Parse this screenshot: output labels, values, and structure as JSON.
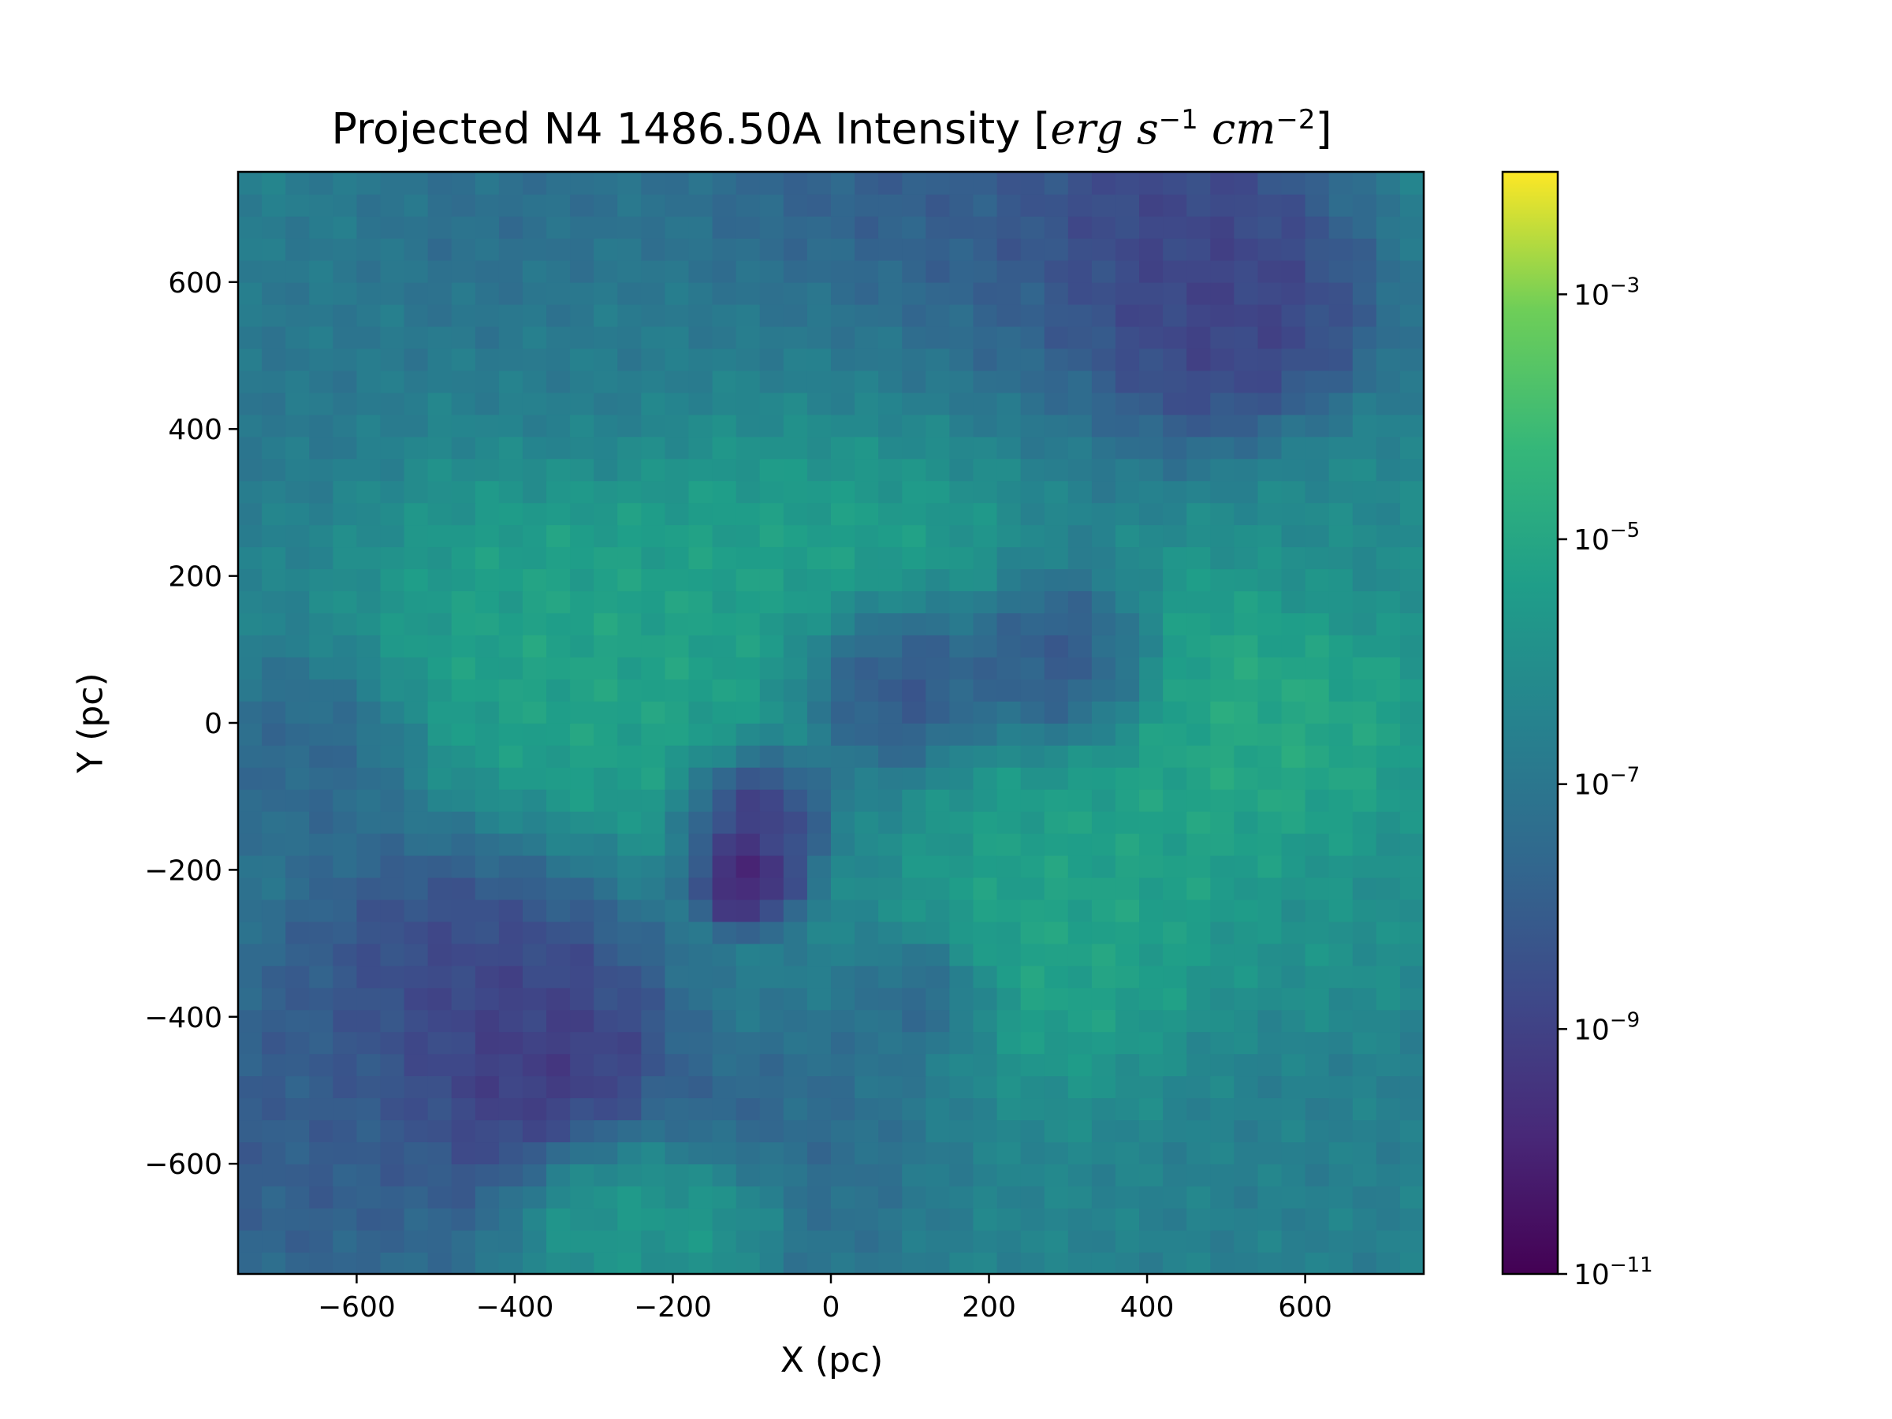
{
  "chart_data": {
    "type": "heatmap",
    "title": "Projected N4 1486.50A Intensity",
    "title_unit": {
      "erg": "erg",
      "s": "s",
      "s_exp": "−1",
      "cm": "cm",
      "cm_exp": "−2"
    },
    "xlabel": "X (pc)",
    "ylabel": "Y (pc)",
    "xlim": [
      -750,
      750
    ],
    "ylim": [
      -750,
      750
    ],
    "x_ticks": [
      -600,
      -400,
      -200,
      0,
      200,
      400,
      600
    ],
    "y_ticks": [
      -600,
      -400,
      -200,
      0,
      200,
      400,
      600
    ],
    "x_tick_labels": [
      "−600",
      "−400",
      "−200",
      "0",
      "200",
      "400",
      "600"
    ],
    "y_tick_labels": [
      "−600",
      "−400",
      "−200",
      "0",
      "200",
      "400",
      "600"
    ],
    "colormap": "viridis",
    "color_scale": "log",
    "color_range": [
      1e-11,
      0.01
    ],
    "colorbar": {
      "ticks": [
        1e-11,
        1e-09,
        1e-07,
        1e-05,
        0.001
      ],
      "tick_bases": [
        "10",
        "10",
        "10",
        "10",
        "10"
      ],
      "tick_exponents": [
        "−11",
        "−9",
        "−7",
        "−5",
        "−3"
      ]
    },
    "grid": false,
    "features": [
      {
        "x": -700,
        "y": 500,
        "r": 150,
        "log10": -7.0
      },
      {
        "x": -650,
        "y": -50,
        "r": 120,
        "log10": -7.8
      },
      {
        "x": -650,
        "y": -550,
        "r": 220,
        "log10": -8.2
      },
      {
        "x": -450,
        "y": -350,
        "r": 200,
        "log10": -9.0
      },
      {
        "x": -380,
        "y": -480,
        "r": 150,
        "log10": -9.6
      },
      {
        "x": -300,
        "y": -650,
        "r": 100,
        "log10": -5.4
      },
      {
        "x": -150,
        "y": -650,
        "r": 100,
        "log10": -5.4
      },
      {
        "x": -130,
        "y": -550,
        "r": 80,
        "log10": -8.0
      },
      {
        "x": 30,
        "y": -580,
        "r": 170,
        "log10": -7.8
      },
      {
        "x": 200,
        "y": -600,
        "r": 200,
        "log10": -6.3
      },
      {
        "x": 500,
        "y": -600,
        "r": 250,
        "log10": -6.6
      },
      {
        "x": 80,
        "y": 60,
        "r": 110,
        "log10": -8.6
      },
      {
        "x": -100,
        "y": -120,
        "r": 80,
        "log10": -9.8
      },
      {
        "x": -110,
        "y": -210,
        "r": 60,
        "log10": -10.6
      },
      {
        "x": 300,
        "y": 70,
        "r": 110,
        "log10": -8.6
      },
      {
        "x": 130,
        "y": -380,
        "r": 80,
        "log10": -8.2
      },
      {
        "x": 500,
        "y": 560,
        "r": 160,
        "log10": -9.2
      },
      {
        "x": 100,
        "y": 660,
        "r": 250,
        "log10": -8.2
      },
      {
        "x": 400,
        "y": 700,
        "r": 180,
        "log10": -9.0
      },
      {
        "x": -400,
        "y": 690,
        "r": 170,
        "log10": -7.4
      },
      {
        "x": 0,
        "y": 500,
        "r": 180,
        "log10": -6.7
      },
      {
        "x": -300,
        "y": 500,
        "r": 150,
        "log10": -6.8
      },
      {
        "x": -300,
        "y": 80,
        "r": 260,
        "log10": -5.0
      },
      {
        "x": 550,
        "y": 20,
        "r": 200,
        "log10": -4.7
      },
      {
        "x": 350,
        "y": -200,
        "r": 220,
        "log10": -5.1
      },
      {
        "x": 0,
        "y": 300,
        "r": 200,
        "log10": -5.1
      },
      {
        "x": 300,
        "y": -380,
        "r": 170,
        "log10": -4.9
      },
      {
        "x": 650,
        "y": 250,
        "r": 150,
        "log10": -6.2
      },
      {
        "x": 620,
        "y": -300,
        "r": 120,
        "log10": -5.8
      }
    ]
  }
}
